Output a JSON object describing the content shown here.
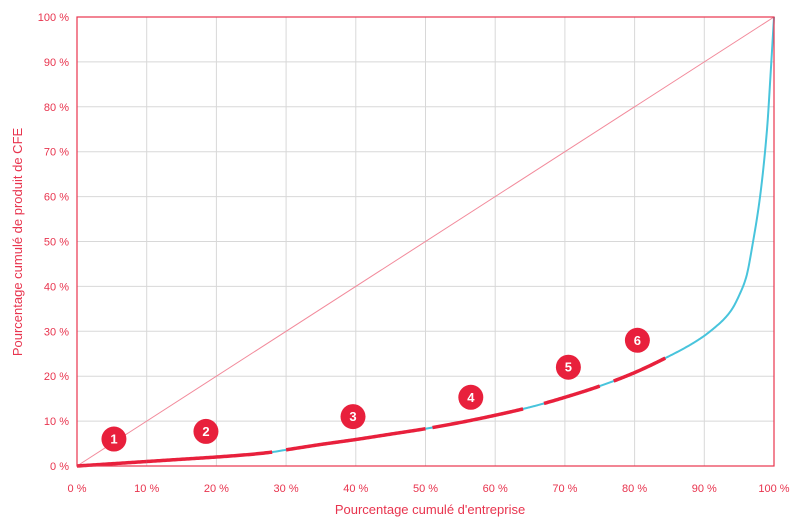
{
  "chart_data": {
    "type": "line",
    "xlabel": "Pourcentage cumulé d'entreprise",
    "ylabel": "Pourcentage cumulé de produit de CFE",
    "xlim": [
      0,
      100
    ],
    "ylim": [
      0,
      100
    ],
    "x_ticks": [
      "0 %",
      "10 %",
      "20 %",
      "30 %",
      "40 %",
      "50 %",
      "60 %",
      "70 %",
      "80 %",
      "90 %",
      "100 %"
    ],
    "y_ticks": [
      "0 %",
      "10 %",
      "20 %",
      "30 %",
      "40 %",
      "50 %",
      "60 %",
      "70 %",
      "80 %",
      "90 %",
      "100 %"
    ],
    "grid": true,
    "series": [
      {
        "style": "equality-line",
        "x": [
          0,
          100
        ],
        "y": [
          0,
          100
        ]
      },
      {
        "style": "concentration-curve",
        "x": [
          0,
          5,
          10,
          15,
          20,
          25,
          28,
          30,
          35,
          40,
          45,
          50,
          55,
          60,
          65,
          70,
          75,
          80,
          85,
          88,
          90,
          92,
          93,
          94,
          95,
          96,
          97,
          98,
          99,
          99.5,
          100
        ],
        "y": [
          0,
          0.5,
          1.0,
          1.5,
          2.0,
          2.6,
          3.1,
          3.6,
          4.8,
          5.9,
          7.1,
          8.3,
          9.7,
          11.3,
          13.1,
          15.3,
          17.8,
          20.8,
          24.5,
          27.0,
          29.0,
          31.5,
          33.0,
          35.0,
          38.0,
          42.0,
          50.0,
          60.0,
          75.0,
          87.0,
          100.0
        ]
      }
    ],
    "highlighted_segments": [
      {
        "x_start": 0,
        "x_end": 10
      },
      {
        "x_start": 10,
        "x_end": 28
      },
      {
        "x_start": 30,
        "x_end": 50
      },
      {
        "x_start": 51,
        "x_end": 64
      },
      {
        "x_start": 67,
        "x_end": 75
      },
      {
        "x_start": 77,
        "x_end": 84.5
      }
    ],
    "markers": [
      {
        "label": "1",
        "x": 5.3,
        "y": 6.0
      },
      {
        "label": "2",
        "x": 18.5,
        "y": 7.7
      },
      {
        "label": "3",
        "x": 39.6,
        "y": 11.0
      },
      {
        "label": "4",
        "x": 56.5,
        "y": 15.3
      },
      {
        "label": "5",
        "x": 70.5,
        "y": 22.0
      },
      {
        "label": "6",
        "x": 80.4,
        "y": 28.0
      }
    ],
    "colors": {
      "axis": "#e8344e",
      "grid": "#d8d8d8",
      "equality_line": "#f28a9b",
      "curve": "#48c4dc",
      "highlight": "#e8203c",
      "marker": "#e8203c"
    }
  }
}
